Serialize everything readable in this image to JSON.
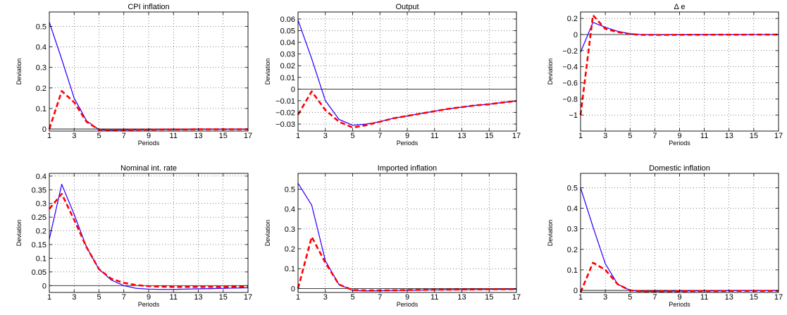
{
  "chart_data": [
    {
      "type": "line",
      "title": "CPI inflation",
      "xlabel": "Periods",
      "ylabel": "Deviation",
      "xlim": [
        1,
        17
      ],
      "ylim": [
        -0.01,
        0.57
      ],
      "xticks": [
        1,
        3,
        5,
        7,
        9,
        11,
        13,
        15,
        17
      ],
      "yticks": [
        0,
        0.1,
        0.2,
        0.3,
        0.4,
        0.5
      ],
      "ytick_labels": [
        "0",
        "0.1",
        "0.2",
        "0.3",
        "0.4",
        "0.5"
      ],
      "grid": true,
      "zero_line": true,
      "x": [
        1,
        2,
        3,
        4,
        5,
        6,
        7,
        8,
        9,
        10,
        11,
        12,
        13,
        14,
        15,
        16,
        17
      ],
      "series": [
        {
          "color": "#0000ff",
          "style": "solid",
          "values": [
            0.52,
            0.34,
            0.15,
            0.04,
            -0.003,
            -0.005,
            -0.004,
            -0.003,
            -0.003,
            -0.002,
            -0.002,
            -0.002,
            -0.001,
            -0.001,
            -0.001,
            -0.001,
            -0.001
          ]
        },
        {
          "color": "#8000ff",
          "style": "dotted",
          "values": [
            0.52,
            0.34,
            0.15,
            0.04,
            -0.003,
            -0.005,
            -0.004,
            -0.003,
            -0.003,
            -0.002,
            -0.002,
            -0.002,
            -0.001,
            -0.001,
            -0.001,
            -0.001,
            -0.001
          ]
        },
        {
          "color": "#ff0000",
          "style": "dashed",
          "values": [
            0.0,
            0.185,
            0.13,
            0.035,
            -0.003,
            -0.005,
            -0.004,
            -0.003,
            -0.003,
            -0.002,
            -0.002,
            -0.002,
            -0.001,
            -0.001,
            -0.001,
            -0.001,
            -0.001
          ]
        }
      ]
    },
    {
      "type": "line",
      "title": "Output",
      "xlabel": "Periods",
      "ylabel": "Deviation",
      "xlim": [
        1,
        17
      ],
      "ylim": [
        -0.036,
        0.066
      ],
      "xticks": [
        1,
        3,
        5,
        7,
        9,
        11,
        13,
        15,
        17
      ],
      "yticks": [
        -0.03,
        -0.02,
        -0.01,
        0,
        0.01,
        0.02,
        0.03,
        0.04,
        0.05,
        0.06
      ],
      "ytick_labels": [
        "−0.03",
        "−0.02",
        "−0.01",
        "0",
        "0.01",
        "0.02",
        "0.03",
        "0.04",
        "0.05",
        "0.06"
      ],
      "grid": true,
      "zero_line": true,
      "x": [
        1,
        2,
        3,
        4,
        5,
        6,
        7,
        8,
        9,
        10,
        11,
        12,
        13,
        14,
        15,
        16,
        17
      ],
      "series": [
        {
          "color": "#0000ff",
          "style": "solid",
          "values": [
            0.059,
            0.026,
            -0.01,
            -0.026,
            -0.031,
            -0.03,
            -0.028,
            -0.025,
            -0.023,
            -0.021,
            -0.019,
            -0.017,
            -0.0155,
            -0.014,
            -0.013,
            -0.0115,
            -0.0103
          ]
        },
        {
          "color": "#8000ff",
          "style": "dotted",
          "values": [
            0.059,
            0.026,
            -0.01,
            -0.026,
            -0.031,
            -0.03,
            -0.028,
            -0.025,
            -0.023,
            -0.021,
            -0.019,
            -0.017,
            -0.0155,
            -0.014,
            -0.013,
            -0.0115,
            -0.0103
          ]
        },
        {
          "color": "#ff0000",
          "style": "dashed",
          "values": [
            -0.022,
            -0.002,
            -0.018,
            -0.028,
            -0.033,
            -0.031,
            -0.028,
            -0.025,
            -0.023,
            -0.021,
            -0.019,
            -0.017,
            -0.0155,
            -0.014,
            -0.013,
            -0.0115,
            -0.0103
          ]
        }
      ]
    },
    {
      "type": "line",
      "title": "Δ e",
      "xlabel": "Periods",
      "ylabel": "Deviation",
      "xlim": [
        1,
        17
      ],
      "ylim": [
        -1.2,
        0.28
      ],
      "xticks": [
        1,
        3,
        5,
        7,
        9,
        11,
        13,
        15,
        17
      ],
      "yticks": [
        -1,
        -0.8,
        -0.6,
        -0.4,
        -0.2,
        0,
        0.2
      ],
      "ytick_labels": [
        "−1",
        "−0.8",
        "−0.6",
        "−0.4",
        "−0.2",
        "0",
        "0.2"
      ],
      "grid": true,
      "zero_line": true,
      "x": [
        1,
        2,
        3,
        4,
        5,
        6,
        7,
        8,
        9,
        10,
        11,
        12,
        13,
        14,
        15,
        16,
        17
      ],
      "series": [
        {
          "color": "#0000ff",
          "style": "solid",
          "values": [
            -0.22,
            0.15,
            0.09,
            0.04,
            0.01,
            -0.002,
            -0.004,
            -0.004,
            -0.004,
            -0.003,
            -0.003,
            -0.002,
            -0.002,
            -0.002,
            -0.001,
            -0.001,
            -0.001
          ]
        },
        {
          "color": "#8000ff",
          "style": "dotted",
          "values": [
            -0.22,
            0.15,
            0.09,
            0.04,
            0.01,
            -0.002,
            -0.004,
            -0.004,
            -0.004,
            -0.003,
            -0.003,
            -0.002,
            -0.002,
            -0.002,
            -0.001,
            -0.001,
            -0.001
          ]
        },
        {
          "color": "#ff0000",
          "style": "dashed",
          "values": [
            -1.0,
            0.24,
            0.07,
            0.03,
            0.005,
            -0.004,
            -0.005,
            -0.005,
            -0.004,
            -0.003,
            -0.003,
            -0.002,
            -0.002,
            -0.002,
            -0.001,
            -0.001,
            -0.001
          ]
        }
      ]
    },
    {
      "type": "line",
      "title": "Nominal int. rate",
      "xlabel": "Periods",
      "ylabel": "Deviation",
      "xlim": [
        1,
        17
      ],
      "ylim": [
        -0.025,
        0.41
      ],
      "xticks": [
        1,
        3,
        5,
        7,
        9,
        11,
        13,
        15,
        17
      ],
      "yticks": [
        0,
        0.05,
        0.1,
        0.15,
        0.2,
        0.25,
        0.3,
        0.35,
        0.4
      ],
      "ytick_labels": [
        "0",
        "0.05",
        "0.1",
        "0.15",
        "0.2",
        "0.25",
        "0.3",
        "0.35",
        "0.4"
      ],
      "grid": true,
      "zero_line": true,
      "x": [
        1,
        2,
        3,
        4,
        5,
        6,
        7,
        8,
        9,
        10,
        11,
        12,
        13,
        14,
        15,
        16,
        17
      ],
      "series": [
        {
          "color": "#0000ff",
          "style": "solid",
          "values": [
            0.17,
            0.37,
            0.26,
            0.14,
            0.06,
            0.02,
            0.0,
            -0.01,
            -0.013,
            -0.014,
            -0.014,
            -0.013,
            -0.012,
            -0.011,
            -0.01,
            -0.009,
            -0.008
          ]
        },
        {
          "color": "#8000ff",
          "style": "dotted",
          "values": [
            0.17,
            0.37,
            0.26,
            0.14,
            0.06,
            0.02,
            0.0,
            -0.01,
            -0.013,
            -0.014,
            -0.014,
            -0.013,
            -0.012,
            -0.011,
            -0.01,
            -0.009,
            -0.008
          ]
        },
        {
          "color": "#ff0000",
          "style": "dashed",
          "values": [
            0.28,
            0.335,
            0.24,
            0.14,
            0.06,
            0.025,
            0.01,
            0.002,
            -0.002,
            -0.004,
            -0.005,
            -0.005,
            -0.005,
            -0.005,
            -0.005,
            -0.004,
            -0.004
          ]
        }
      ]
    },
    {
      "type": "line",
      "title": "Imported inflation",
      "xlabel": "Periods",
      "ylabel": "Deviation",
      "xlim": [
        1,
        17
      ],
      "ylim": [
        -0.02,
        0.58
      ],
      "xticks": [
        1,
        3,
        5,
        7,
        9,
        11,
        13,
        15,
        17
      ],
      "yticks": [
        0,
        0.1,
        0.2,
        0.3,
        0.4,
        0.5
      ],
      "ytick_labels": [
        "0",
        "0.1",
        "0.2",
        "0.3",
        "0.4",
        "0.5"
      ],
      "grid": true,
      "zero_line": true,
      "x": [
        1,
        2,
        3,
        4,
        5,
        6,
        7,
        8,
        9,
        10,
        11,
        12,
        13,
        14,
        15,
        16,
        17
      ],
      "series": [
        {
          "color": "#0000ff",
          "style": "solid",
          "values": [
            0.53,
            0.42,
            0.14,
            0.02,
            -0.01,
            -0.012,
            -0.011,
            -0.01,
            -0.009,
            -0.008,
            -0.007,
            -0.006,
            -0.006,
            -0.005,
            -0.005,
            -0.004,
            -0.004
          ]
        },
        {
          "color": "#8000ff",
          "style": "dotted",
          "values": [
            0.53,
            0.42,
            0.14,
            0.02,
            -0.01,
            -0.012,
            -0.011,
            -0.01,
            -0.009,
            -0.008,
            -0.007,
            -0.006,
            -0.006,
            -0.005,
            -0.005,
            -0.004,
            -0.004
          ]
        },
        {
          "color": "#ff0000",
          "style": "dashed",
          "values": [
            0.0,
            0.26,
            0.13,
            0.02,
            -0.008,
            -0.01,
            -0.01,
            -0.009,
            -0.008,
            -0.007,
            -0.006,
            -0.006,
            -0.005,
            -0.005,
            -0.004,
            -0.004,
            -0.004
          ]
        }
      ]
    },
    {
      "type": "line",
      "title": "Domestic inflation",
      "xlabel": "Periods",
      "ylabel": "Deviation",
      "xlim": [
        1,
        17
      ],
      "ylim": [
        -0.01,
        0.57
      ],
      "xticks": [
        1,
        3,
        5,
        7,
        9,
        11,
        13,
        15,
        17
      ],
      "yticks": [
        0,
        0.1,
        0.2,
        0.3,
        0.4,
        0.5
      ],
      "ytick_labels": [
        "0",
        "0.1",
        "0.2",
        "0.3",
        "0.4",
        "0.5"
      ],
      "grid": true,
      "zero_line": true,
      "x": [
        1,
        2,
        3,
        4,
        5,
        6,
        7,
        8,
        9,
        10,
        11,
        12,
        13,
        14,
        15,
        16,
        17
      ],
      "series": [
        {
          "color": "#0000ff",
          "style": "solid",
          "values": [
            0.5,
            0.31,
            0.13,
            0.03,
            0.0,
            -0.004,
            -0.004,
            -0.003,
            -0.003,
            -0.002,
            -0.002,
            -0.002,
            -0.001,
            -0.001,
            -0.001,
            -0.001,
            -0.001
          ]
        },
        {
          "color": "#8000ff",
          "style": "dotted",
          "values": [
            0.5,
            0.31,
            0.13,
            0.03,
            0.0,
            -0.004,
            -0.004,
            -0.003,
            -0.003,
            -0.002,
            -0.002,
            -0.002,
            -0.001,
            -0.001,
            -0.001,
            -0.001,
            -0.001
          ]
        },
        {
          "color": "#ff0000",
          "style": "dashed",
          "values": [
            -0.01,
            0.135,
            0.1,
            0.03,
            0.0,
            -0.004,
            -0.005,
            -0.004,
            -0.004,
            -0.003,
            -0.003,
            -0.003,
            -0.002,
            -0.002,
            -0.002,
            -0.002,
            -0.002
          ]
        }
      ]
    }
  ]
}
